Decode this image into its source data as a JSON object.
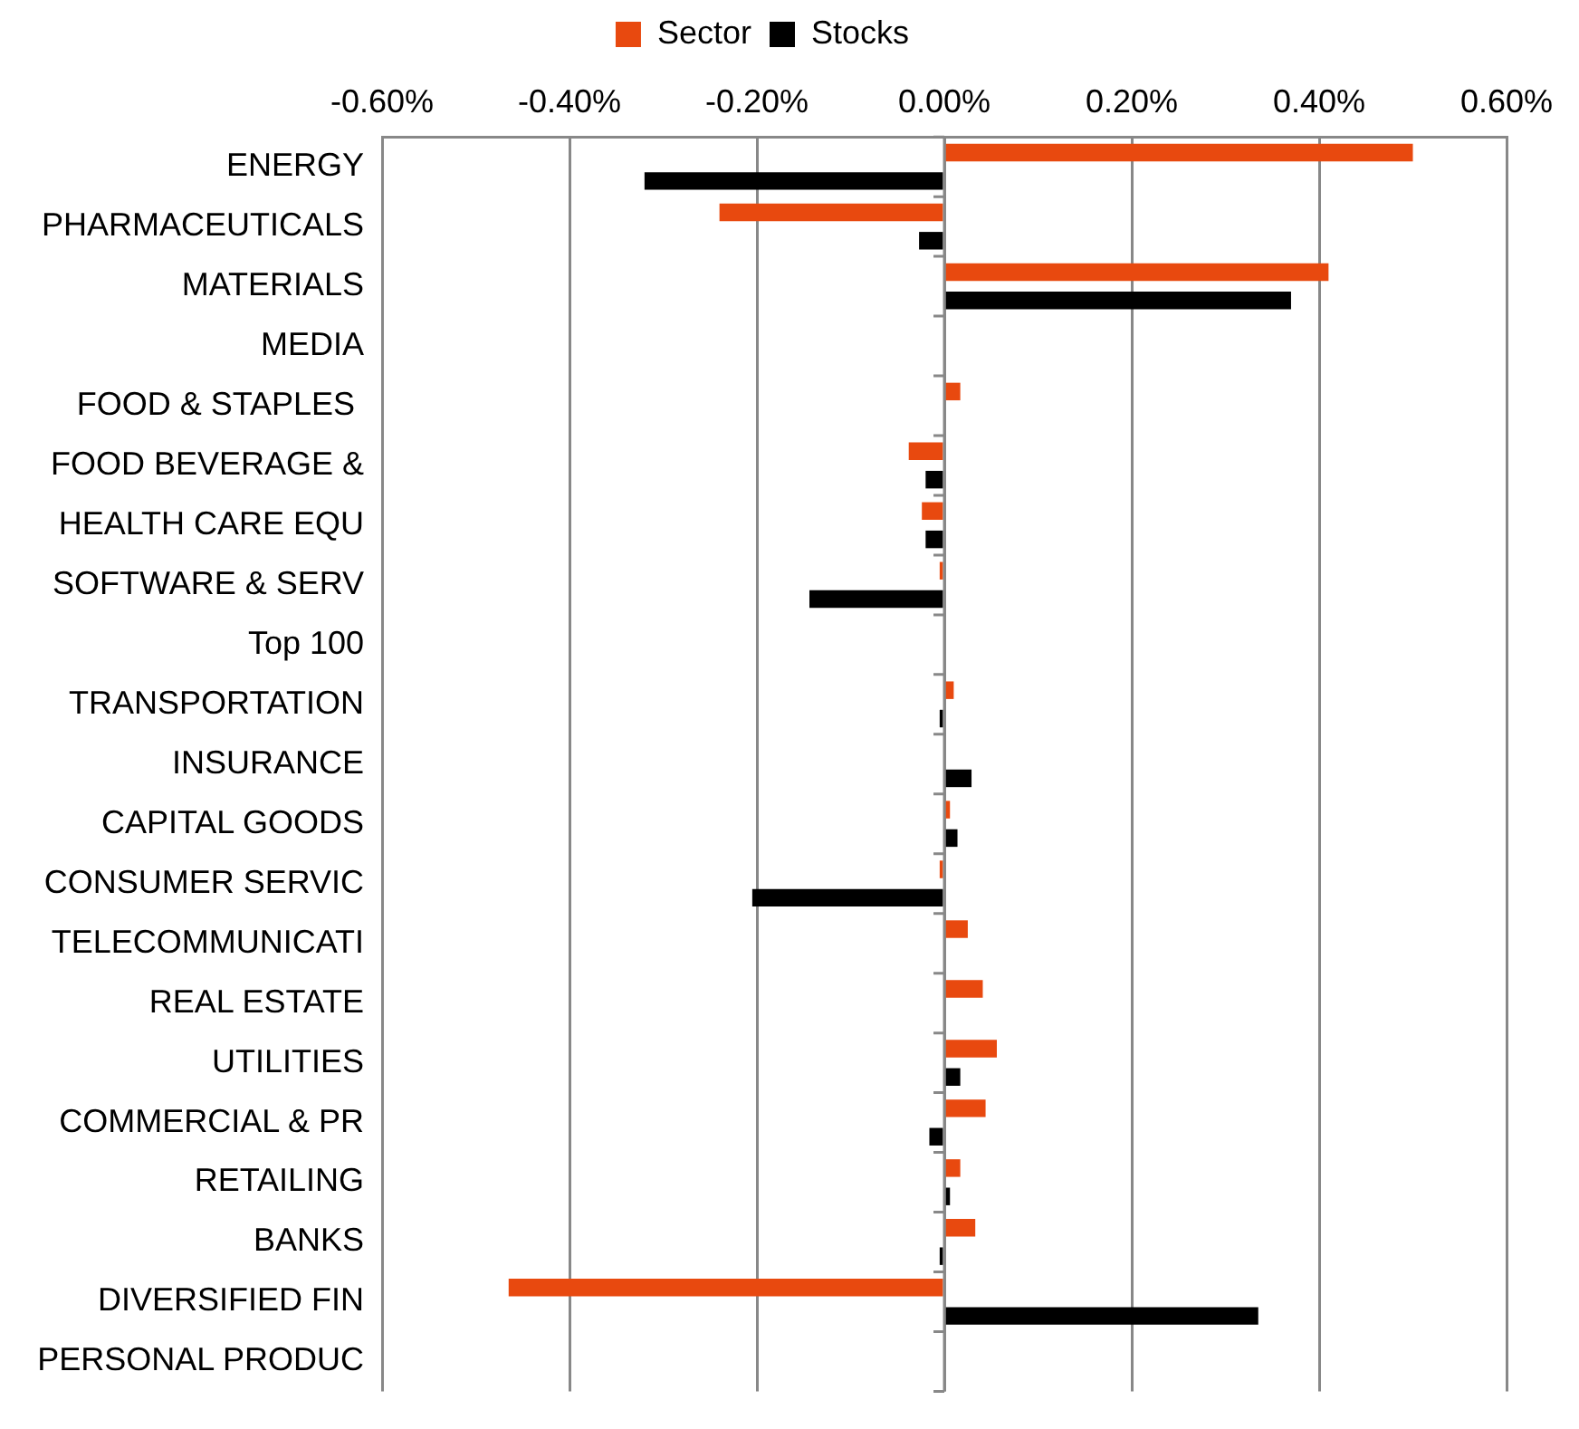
{
  "chart_data": {
    "type": "bar",
    "orientation": "horizontal",
    "categories": [
      "ENERGY",
      "PHARMACEUTICALS",
      "MATERIALS",
      "MEDIA",
      "FOOD & STAPLES ",
      "FOOD BEVERAGE &",
      "HEALTH CARE EQU",
      "SOFTWARE & SERV",
      "Top 100",
      "TRANSPORTATION",
      "INSURANCE",
      "CAPITAL GOODS",
      "CONSUMER SERVIC",
      "TELECOMMUNICATI",
      "REAL ESTATE",
      "UTILITIES",
      "COMMERCIAL & PR",
      "RETAILING",
      "BANKS",
      "DIVERSIFIED FIN",
      "PERSONAL PRODUC"
    ],
    "series": [
      {
        "name": "Sector",
        "color": "#e8490f",
        "values": [
          0.5,
          -0.24,
          0.41,
          null,
          0.017,
          -0.038,
          -0.024,
          -0.005,
          null,
          0.01,
          null,
          0.006,
          -0.005,
          0.025,
          0.041,
          0.056,
          0.044,
          0.017,
          0.033,
          -0.465,
          null
        ]
      },
      {
        "name": "Stocks",
        "color": "#000000",
        "values": [
          -0.32,
          -0.027,
          0.37,
          null,
          null,
          -0.02,
          -0.02,
          -0.144,
          null,
          -0.005,
          0.029,
          0.014,
          -0.205,
          null,
          null,
          0.017,
          -0.016,
          0.006,
          -0.005,
          0.335,
          null
        ]
      }
    ],
    "xlim": [
      -0.6,
      0.6
    ],
    "xticks": [
      {
        "value": -0.6,
        "label": "-0.60%"
      },
      {
        "value": -0.4,
        "label": "-0.40%"
      },
      {
        "value": -0.2,
        "label": "-0.20%"
      },
      {
        "value": 0,
        "label": "0.00%"
      },
      {
        "value": 0.2,
        "label": "0.20%"
      },
      {
        "value": 0.4,
        "label": "0.40%"
      },
      {
        "value": 0.6,
        "label": "0.60%"
      }
    ],
    "grid": "x",
    "legend": "top"
  }
}
